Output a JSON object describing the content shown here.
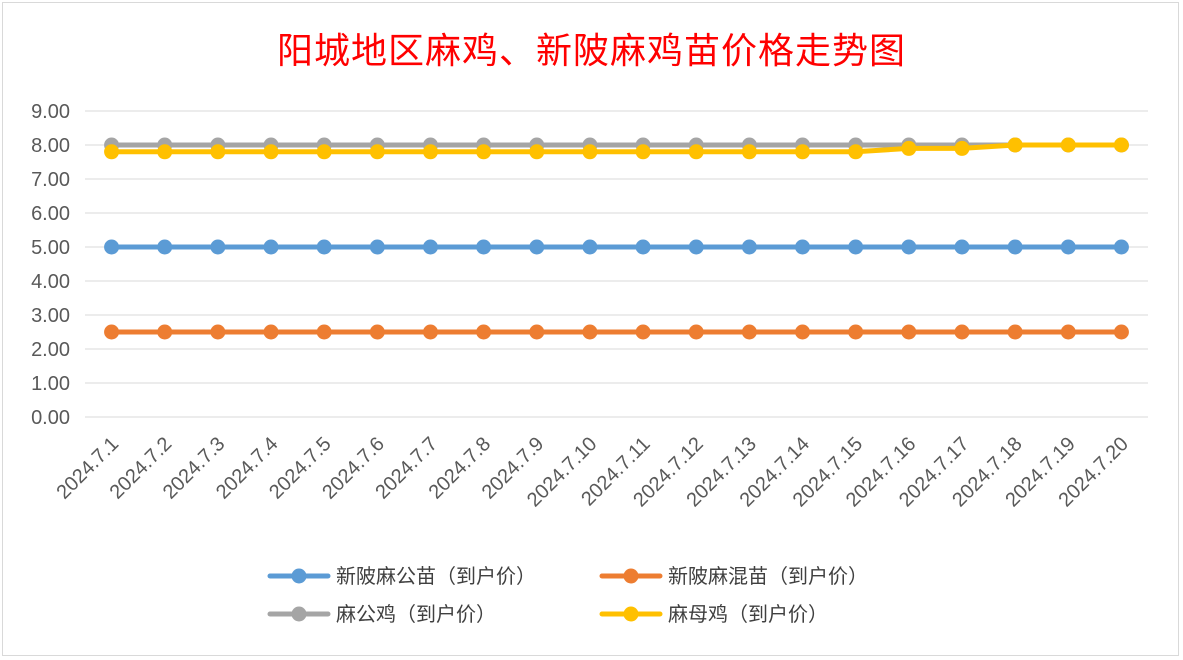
{
  "chart_data": {
    "type": "line",
    "title": "阳城地区麻鸡、新陂麻鸡苗价格走势图",
    "xlabel": "",
    "ylabel": "",
    "ylim": [
      0,
      9
    ],
    "y_ticks": [
      "0.00",
      "1.00",
      "2.00",
      "3.00",
      "4.00",
      "5.00",
      "6.00",
      "7.00",
      "8.00",
      "9.00"
    ],
    "categories": [
      "2024.7.1",
      "2024.7.2",
      "2024.7.3",
      "2024.7.4",
      "2024.7.5",
      "2024.7.6",
      "2024.7.7",
      "2024.7.8",
      "2024.7.9",
      "2024.7.10",
      "2024.7.11",
      "2024.7.12",
      "2024.7.13",
      "2024.7.14",
      "2024.7.15",
      "2024.7.16",
      "2024.7.17",
      "2024.7.18",
      "2024.7.19",
      "2024.7.20"
    ],
    "grid": true,
    "legend_position": "bottom",
    "series": [
      {
        "name": "新陂麻公苗（到户价）",
        "color": "#5b9bd5",
        "values": [
          5,
          5,
          5,
          5,
          5,
          5,
          5,
          5,
          5,
          5,
          5,
          5,
          5,
          5,
          5,
          5,
          5,
          5,
          5,
          5
        ]
      },
      {
        "name": "新陂麻混苗（到户价）",
        "color": "#ed7d31",
        "values": [
          2.5,
          2.5,
          2.5,
          2.5,
          2.5,
          2.5,
          2.5,
          2.5,
          2.5,
          2.5,
          2.5,
          2.5,
          2.5,
          2.5,
          2.5,
          2.5,
          2.5,
          2.5,
          2.5,
          2.5
        ]
      },
      {
        "name": "麻公鸡（到户价）",
        "color": "#a5a5a5",
        "values": [
          8,
          8,
          8,
          8,
          8,
          8,
          8,
          8,
          8,
          8,
          8,
          8,
          8,
          8,
          8,
          8,
          8,
          8,
          8,
          8
        ]
      },
      {
        "name": "麻母鸡（到户价）",
        "color": "#ffc000",
        "values": [
          7.8,
          7.8,
          7.8,
          7.8,
          7.8,
          7.8,
          7.8,
          7.8,
          7.8,
          7.8,
          7.8,
          7.8,
          7.8,
          7.8,
          7.8,
          7.9,
          7.9,
          8,
          8,
          8
        ]
      }
    ]
  }
}
